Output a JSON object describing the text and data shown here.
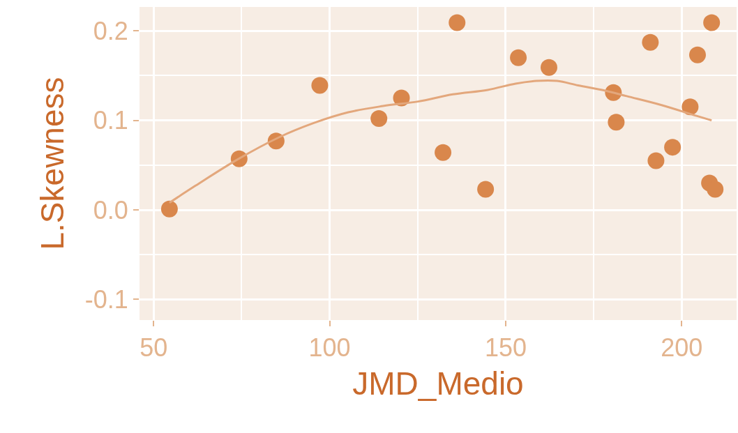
{
  "chart_data": {
    "type": "scatter",
    "xlabel": "JMD_Medio",
    "ylabel": "L.Skewness",
    "xlim": [
      46.0,
      215.6
    ],
    "ylim": [
      -0.123,
      0.2266
    ],
    "xticks": [
      50,
      100,
      150,
      200
    ],
    "yticks": [
      -0.1,
      {
        "value": 0,
        "label": "0.0"
      },
      0.1,
      0.2
    ],
    "grid": true,
    "marker": "circle",
    "series": [
      {
        "color": "#d9874c",
        "x": [
          54.5,
          74.3,
          84.8,
          97.2,
          114.0,
          120.4,
          132.2,
          136.2,
          144.3,
          153.6,
          162.3,
          180.6,
          181.4,
          191.1,
          192.7,
          197.4,
          202.4,
          204.5,
          207.9,
          208.5,
          209.5
        ],
        "values": [
          0.001,
          0.057,
          0.077,
          0.139,
          0.102,
          0.125,
          0.064,
          0.209,
          0.023,
          0.17,
          0.159,
          0.131,
          0.098,
          0.187,
          0.055,
          0.07,
          0.115,
          0.173,
          0.03,
          0.209,
          0.023
        ]
      },
      {
        "type": "line",
        "color": "#e3a77c",
        "marker": "none",
        "x": [
          54.5,
          61.9,
          73.7,
          85.6,
          95.5,
          105.3,
          115.2,
          125.1,
          135.0,
          144.9,
          152.8,
          158.7,
          164.6,
          170.6,
          178.5,
          184.4,
          194.3,
          204.2,
          208.5
        ],
        "values": [
          0.008,
          0.027,
          0.056,
          0.081,
          0.097,
          0.109,
          0.116,
          0.121,
          0.129,
          0.134,
          0.141,
          0.144,
          0.144,
          0.139,
          0.133,
          0.127,
          0.117,
          0.105,
          0.1
        ]
      }
    ]
  }
}
